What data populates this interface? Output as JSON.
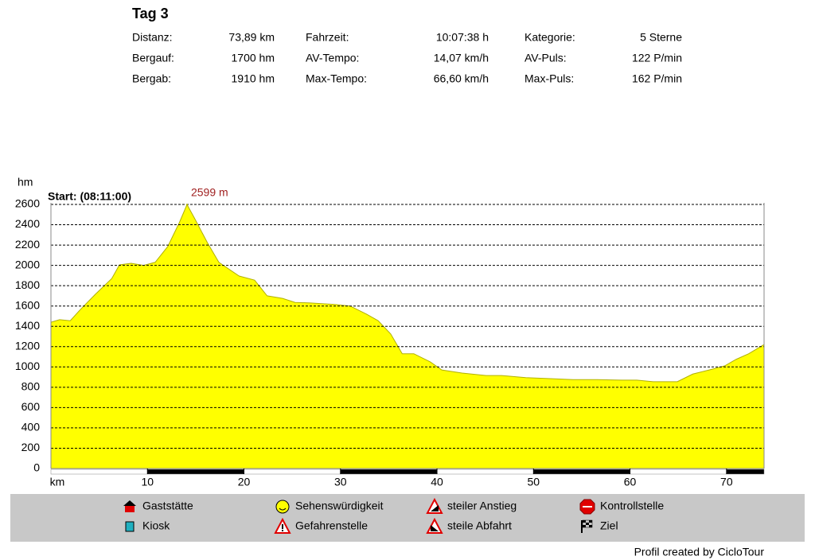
{
  "header": {
    "title": "Tag 3"
  },
  "summary": {
    "rows": [
      [
        [
          "Distanz:",
          "73,89 km"
        ],
        [
          "Fahrzeit:",
          "10:07:38 h"
        ],
        [
          "Kategorie:",
          "5 Sterne"
        ]
      ],
      [
        [
          "Bergauf:",
          "1700 hm"
        ],
        [
          "AV-Tempo:",
          "14,07 km/h"
        ],
        [
          "AV-Puls:",
          "122 P/min"
        ]
      ],
      [
        [
          "Bergab:",
          "1910 hm"
        ],
        [
          "Max-Tempo:",
          "66,60 km/h"
        ],
        [
          "Max-Puls:",
          "162 P/min"
        ]
      ]
    ]
  },
  "chart_data": {
    "type": "area",
    "y_label": "hm",
    "x_label": "km",
    "start_label": "Start: (08:11:00)",
    "color": "#ffff00",
    "x": [
      0,
      0.9,
      2.0,
      3.0,
      4.6,
      6.3,
      7.1,
      8.3,
      9.6,
      10.8,
      12.1,
      13.3,
      14.1,
      14.9,
      16.2,
      17.4,
      19.5,
      21.1,
      22.4,
      24.0,
      25.3,
      26.9,
      29.4,
      31.0,
      32.7,
      33.9,
      35.2,
      36.4,
      37.6,
      39.3,
      40.5,
      42.6,
      45.1,
      46.7,
      49.2,
      51.7,
      54.1,
      56.6,
      59.1,
      60.7,
      62.4,
      64.9,
      66.5,
      68.2,
      69.8,
      71.0,
      72.3,
      73.89
    ],
    "values": [
      1440,
      1465,
      1455,
      1560,
      1715,
      1870,
      2005,
      2020,
      2000,
      2030,
      2185,
      2420,
      2599,
      2460,
      2225,
      2030,
      1895,
      1855,
      1700,
      1675,
      1635,
      1630,
      1615,
      1600,
      1520,
      1455,
      1325,
      1130,
      1130,
      1050,
      970,
      940,
      915,
      915,
      895,
      885,
      875,
      875,
      870,
      870,
      855,
      855,
      930,
      970,
      1010,
      1075,
      1130,
      1220
    ],
    "peak": {
      "x": 14.1,
      "y": 2599,
      "label": "2599 m"
    },
    "xlim": [
      0,
      73.89
    ],
    "xticks": [
      10,
      20,
      30,
      40,
      50,
      60,
      70
    ],
    "ylim": [
      0,
      2600
    ],
    "yticks": [
      0,
      200,
      400,
      600,
      800,
      1000,
      1200,
      1400,
      1600,
      1800,
      2000,
      2200,
      2400,
      2600
    ],
    "grid": true
  },
  "legend": {
    "items": [
      "Gaststätte",
      "Kiosk",
      "Sehenswürdigkeit",
      "Gefahrenstelle",
      "steiler Anstieg",
      "steile Abfahrt",
      "Kontrollstelle",
      "Ziel"
    ]
  },
  "footer": "Profil created by CicloTour"
}
